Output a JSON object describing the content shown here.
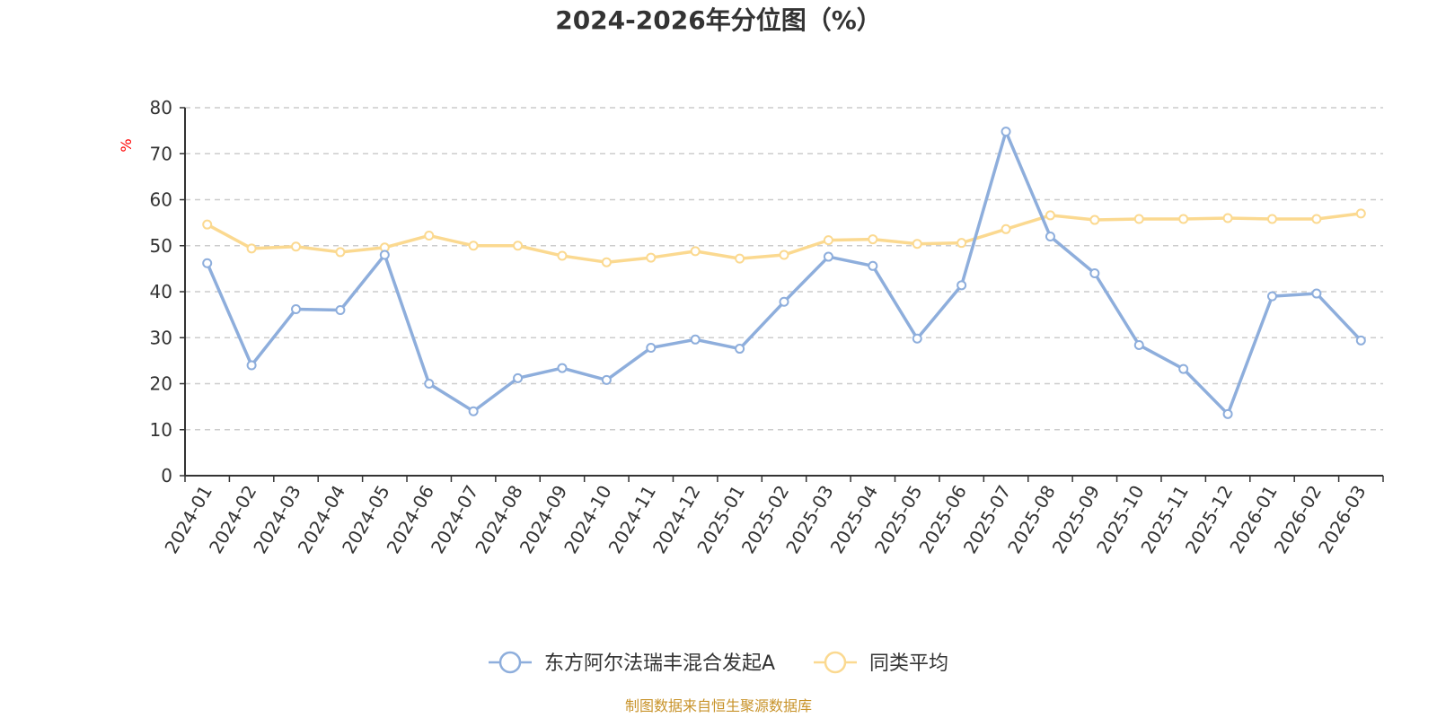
{
  "chart_data": {
    "type": "line",
    "title": "2024-2026年分位图（%）",
    "ylabel": "%",
    "ylim": [
      0,
      80
    ],
    "y_ticks": [
      0,
      10,
      20,
      30,
      40,
      50,
      60,
      70,
      80
    ],
    "grid": true,
    "legend_position": "bottom",
    "categories": [
      "2024-01",
      "2024-02",
      "2024-03",
      "2024-04",
      "2024-05",
      "2024-06",
      "2024-07",
      "2024-08",
      "2024-09",
      "2024-10",
      "2024-11",
      "2024-12",
      "2025-01",
      "2025-02",
      "2025-03",
      "2025-04",
      "2025-05",
      "2025-06",
      "2025-07",
      "2025-08",
      "2025-09",
      "2025-10",
      "2025-11",
      "2025-12",
      "2026-01",
      "2026-02",
      "2026-03"
    ],
    "series": [
      {
        "name": "东方阿尔法瑞丰混合发起A",
        "color": "#8eaedc",
        "values": [
          46.2,
          24.0,
          36.2,
          36.0,
          48.0,
          20.0,
          14.0,
          21.2,
          23.4,
          20.8,
          27.8,
          29.6,
          27.6,
          37.8,
          47.6,
          45.6,
          29.8,
          41.4,
          74.8,
          52.0,
          44.0,
          28.4,
          23.2,
          13.4,
          39.0,
          39.6,
          29.4
        ]
      },
      {
        "name": "同类平均",
        "color": "#fbd990",
        "values": [
          54.6,
          49.4,
          49.8,
          48.6,
          49.6,
          52.2,
          50.0,
          50.0,
          47.8,
          46.4,
          47.4,
          48.8,
          47.2,
          48.0,
          51.2,
          51.4,
          50.4,
          50.6,
          53.6,
          56.6,
          55.6,
          55.8,
          55.8,
          56.0,
          55.8,
          55.8,
          57.0
        ]
      }
    ]
  },
  "source_text": "制图数据来自恒生聚源数据库"
}
